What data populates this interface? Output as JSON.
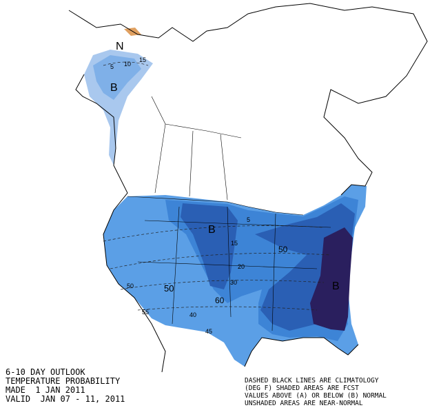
{
  "map": {
    "labels": [
      "N",
      "B",
      "5",
      "10",
      "15",
      "B",
      "5",
      "15",
      "20",
      "30",
      "50",
      "B",
      "50",
      "50",
      "60",
      "55",
      "40",
      "45"
    ]
  },
  "outlook": {
    "lines": [
      "6-10 DAY OUTLOOK",
      "TEMPERATURE PROBABILITY",
      "MADE  1 JAN 2011",
      "VALID  JAN 07 - 11, 2011"
    ]
  },
  "legend": {
    "lines": [
      "DASHED BLACK LINES ARE CLIMATOLOGY",
      "(DEG F) SHADED AREAS ARE FCST",
      "VALUES ABOVE (A) OR BELOW (B) NORMAL",
      "UNSHADED AREAS ARE NEAR-NORMAL"
    ]
  }
}
